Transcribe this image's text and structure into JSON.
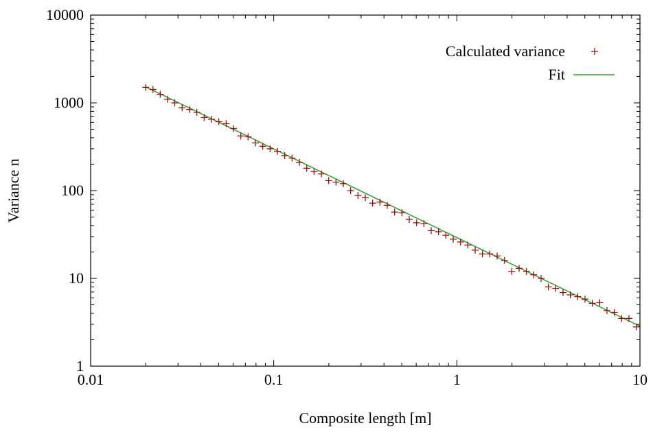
{
  "chart_data": {
    "type": "scatter",
    "xlabel": "Composite length [m]",
    "ylabel": "Variance n",
    "x_scale": "log",
    "y_scale": "log",
    "xlim": [
      0.01,
      10
    ],
    "ylim": [
      1,
      10000
    ],
    "x_ticks": [
      {
        "value": 0.01,
        "label": "0.01"
      },
      {
        "value": 0.1,
        "label": "0.1"
      },
      {
        "value": 1,
        "label": "1"
      },
      {
        "value": 10,
        "label": "10"
      }
    ],
    "y_ticks": [
      {
        "value": 1,
        "label": "1"
      },
      {
        "value": 10,
        "label": "10"
      },
      {
        "value": 100,
        "label": "100"
      },
      {
        "value": 1000,
        "label": "1000"
      },
      {
        "value": 10000,
        "label": "10000"
      }
    ],
    "grid": false,
    "legend_position": "top-right",
    "series": [
      {
        "name": "Calculated variance",
        "style": "points",
        "marker": "plus",
        "color": "#9b0d0d",
        "x": [
          0.02,
          0.0219,
          0.024,
          0.0263,
          0.0288,
          0.0316,
          0.0347,
          0.038,
          0.0417,
          0.0457,
          0.0501,
          0.055,
          0.0603,
          0.0661,
          0.0724,
          0.0794,
          0.0871,
          0.0955,
          0.1047,
          0.1148,
          0.1259,
          0.138,
          0.1514,
          0.166,
          0.182,
          0.1995,
          0.2188,
          0.2399,
          0.263,
          0.2884,
          0.3162,
          0.3467,
          0.3802,
          0.4169,
          0.4571,
          0.5012,
          0.5495,
          0.6026,
          0.6607,
          0.7244,
          0.7943,
          0.871,
          0.955,
          1.047,
          1.148,
          1.259,
          1.38,
          1.514,
          1.66,
          1.82,
          1.995,
          2.188,
          2.399,
          2.63,
          2.884,
          3.162,
          3.467,
          3.802,
          4.169,
          4.571,
          5.012,
          5.495,
          6.026,
          6.607,
          7.244,
          7.943,
          8.71,
          9.55
        ],
        "y": [
          1500,
          1420,
          1250,
          1100,
          1000,
          880,
          840,
          780,
          680,
          650,
          610,
          580,
          510,
          420,
          410,
          350,
          320,
          300,
          280,
          250,
          235,
          210,
          180,
          165,
          155,
          130,
          125,
          120,
          100,
          88,
          83,
          72,
          74,
          68,
          57,
          56,
          47,
          43,
          42,
          35,
          34,
          31,
          28,
          26,
          24,
          21,
          19,
          19,
          18,
          16,
          12,
          13,
          12,
          11,
          10,
          8,
          7.7,
          6.9,
          6.5,
          6.2,
          5.8,
          5.2,
          5.3,
          4.3,
          4.1,
          3.5,
          3.5,
          2.8
        ]
      },
      {
        "name": "Fit",
        "style": "line",
        "color": "#2ea02c",
        "x": [
          0.02,
          10
        ],
        "y": [
          1520,
          2.85
        ]
      }
    ]
  }
}
